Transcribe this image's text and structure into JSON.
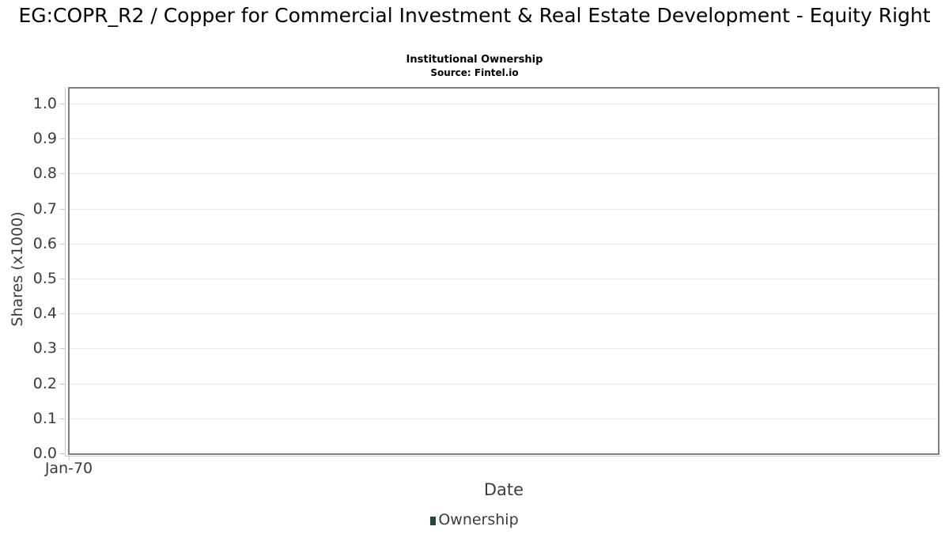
{
  "header": {
    "title": "EG:COPR_R2 / Copper for Commercial Investment & Real Estate Development - Equity Right",
    "subtitle": "Institutional Ownership",
    "source": "Source: Fintel.io"
  },
  "chart_data": {
    "type": "line",
    "title": "EG:COPR_R2 / Copper for Commercial Investment & Real Estate Development - Equity Right",
    "subtitle": "Institutional Ownership",
    "source": "Source: Fintel.io",
    "xlabel": "Date",
    "ylabel": "Shares (x1000)",
    "ylim": [
      0.0,
      1.05
    ],
    "yticks": [
      "0.0",
      "0.1",
      "0.2",
      "0.3",
      "0.4",
      "0.5",
      "0.6",
      "0.7",
      "0.8",
      "0.9",
      "1.0"
    ],
    "xticks": [
      "Jan-70"
    ],
    "grid": true,
    "legend": {
      "position": "bottom",
      "entries": [
        {
          "label": "Ownership",
          "color": "#1e4a2d"
        }
      ]
    },
    "series": [
      {
        "name": "Ownership",
        "x": [],
        "values": []
      }
    ]
  },
  "colors": {
    "plot_border": "#7f7f7f",
    "gridline": "#e8e8e8",
    "axis_line": "#cccccc",
    "axis_text": "#3c3c3c",
    "title_text": "#000000",
    "legend_marker": "#1e4a2d"
  }
}
